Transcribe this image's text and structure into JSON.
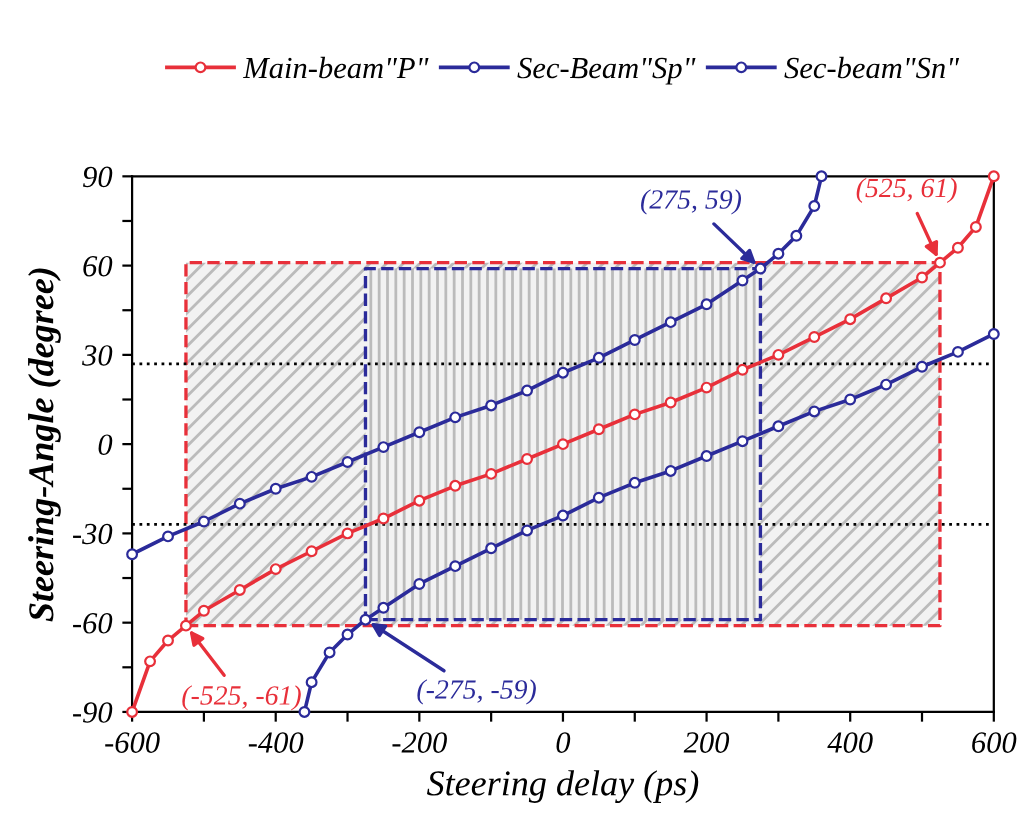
{
  "chart_data": {
    "type": "line",
    "xlabel": "Steering delay (ps)",
    "ylabel": "Steering-Angle (degree)",
    "xlim": [
      -600,
      600
    ],
    "ylim": [
      -90,
      90
    ],
    "xticks": [
      -600,
      {
        "value": -500,
        "label": null
      },
      -400,
      {
        "value": -300,
        "label": null
      },
      -200,
      {
        "value": -100,
        "label": null
      },
      0,
      {
        "value": 100,
        "label": null
      },
      200,
      {
        "value": 300,
        "label": null
      },
      400,
      {
        "value": 500,
        "label": null
      },
      600
    ],
    "yticks": [
      -90,
      {
        "value": -75,
        "label": null
      },
      -60,
      {
        "value": -45,
        "label": null
      },
      -30,
      {
        "value": -15,
        "label": null
      },
      0,
      {
        "value": 15,
        "label": null
      },
      30,
      {
        "value": 45,
        "label": null
      },
      60,
      {
        "value": 75,
        "label": null
      },
      90
    ],
    "grid": false,
    "legend": "top",
    "marker": "circle",
    "line_style": "solid",
    "series": [
      {
        "name": "Main-beam\"P\"",
        "color": "#e8303a",
        "x": [
          -600,
          -575,
          -550,
          -525,
          -500,
          -450,
          -400,
          -350,
          -300,
          -250,
          -200,
          -150,
          -100,
          -50,
          0,
          50,
          100,
          150,
          200,
          250,
          300,
          350,
          400,
          450,
          500,
          525,
          550,
          575,
          600
        ],
        "values": [
          -90,
          -73,
          -66,
          -61,
          -56,
          -49,
          -42,
          -36,
          -30,
          -25,
          -19,
          -14,
          -10,
          -5,
          0,
          5,
          10,
          14,
          19,
          25,
          30,
          36,
          42,
          49,
          56,
          61,
          66,
          73,
          90
        ]
      },
      {
        "name": "Sec-Beam\"Sp\"",
        "color": "#2b2b9a",
        "x": [
          -600,
          -550,
          -500,
          -450,
          -400,
          -350,
          -300,
          -250,
          -200,
          -150,
          -100,
          -50,
          0,
          50,
          100,
          150,
          200,
          250,
          275,
          300,
          325,
          350,
          360
        ],
        "values": [
          -37,
          -31,
          -26,
          -20,
          -15,
          -11,
          -6,
          -1,
          4,
          9,
          13,
          18,
          24,
          29,
          35,
          41,
          47,
          55,
          59,
          64,
          70,
          80,
          90
        ]
      },
      {
        "name": "Sec-beam\"Sn\"",
        "color": "#2b2b9a",
        "x": [
          -360,
          -350,
          -325,
          -300,
          -275,
          -250,
          -200,
          -150,
          -100,
          -50,
          0,
          50,
          100,
          150,
          200,
          250,
          300,
          350,
          400,
          450,
          500,
          550,
          600
        ],
        "values": [
          -90,
          -80,
          -70,
          -64,
          -59,
          -55,
          -47,
          -41,
          -35,
          -29,
          -24,
          -18,
          -13,
          -9,
          -4,
          1,
          6,
          11,
          15,
          20,
          26,
          31,
          37
        ]
      },
      {
        "type": "area",
        "color": "#e8303a",
        "line_style": "dashed",
        "marker": "none",
        "x": [
          -525,
          525,
          525,
          -525,
          -525
        ],
        "values": [
          -61,
          -61,
          61,
          61,
          -61
        ]
      },
      {
        "type": "area",
        "color": "#2b2b9a",
        "line_style": "dashed",
        "marker": "none",
        "x": [
          -275,
          275,
          275,
          -275,
          -275
        ],
        "values": [
          -59,
          -59,
          59,
          59,
          -59
        ]
      }
    ],
    "ref_lines": [
      {
        "axis": "y",
        "value": 27,
        "color": "#000000",
        "line_style": "dotted"
      },
      {
        "axis": "y",
        "value": -27,
        "color": "#000000",
        "line_style": "dotted"
      }
    ],
    "annotations": [
      {
        "text": "(275, 59)",
        "x": 275,
        "y": 59
      },
      {
        "text": "(525, 61)",
        "x": 525,
        "y": 61
      },
      {
        "text": "(-525, -61)",
        "x": -525,
        "y": -61
      },
      {
        "text": "(-275, -59)",
        "x": -275,
        "y": -59
      }
    ]
  }
}
